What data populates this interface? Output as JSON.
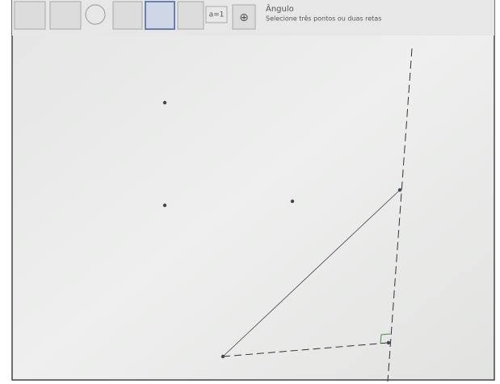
{
  "toolbar": {
    "slider_button": "a=1",
    "tool_name": "Ângulo",
    "tool_hint": "Selecione três pontos ou duas retas"
  }
}
